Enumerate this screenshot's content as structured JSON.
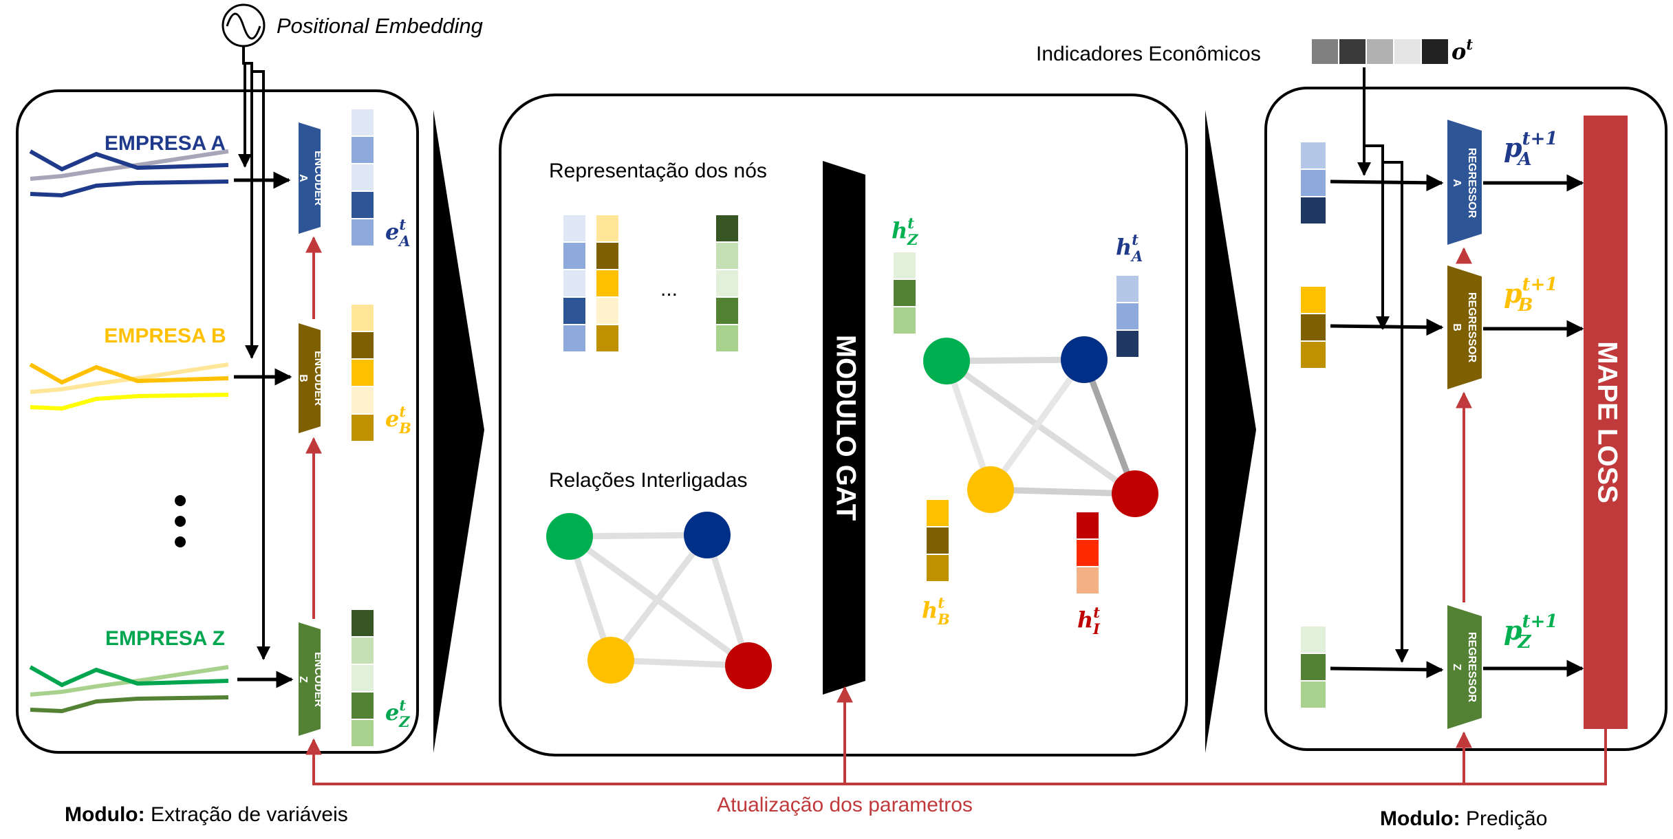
{
  "positional_embedding": "Positional Embedding",
  "economic_indicators": {
    "label": "Indicadores Econômicos",
    "symbol": "o",
    "superscript": "t",
    "cell_colors": [
      "#808080",
      "#3a3a3a",
      "#b0b0b0",
      "#e4e4e4",
      "#222222"
    ]
  },
  "feature_module": {
    "caption_bold": "Modulo:",
    "caption_text": "Extração de variáveis",
    "companies": [
      {
        "name": "EMPRESA A",
        "color": "#1f3a8a",
        "encoder_top": "ENCODER",
        "encoder_bottom": "A",
        "encoder_fill": "#2e5596",
        "emb_symbol": "e",
        "emb_sup": "t",
        "emb_sub": "A",
        "emb_cells": [
          "#dfe7f5",
          "#8eaadc",
          "#dfe7f5",
          "#2e5596",
          "#8eaadc"
        ],
        "series_colors": [
          "#a6a6b8",
          "#1f3a8a",
          "#1f3a8a"
        ]
      },
      {
        "name": "EMPRESA B",
        "color": "#ffc000",
        "encoder_top": "ENCODER",
        "encoder_bottom": "B",
        "encoder_fill": "#7f6000",
        "emb_symbol": "e",
        "emb_sup": "t",
        "emb_sub": "B",
        "emb_cells": [
          "#ffe699",
          "#7f6000",
          "#ffc000",
          "#fff2cc",
          "#bf9000"
        ],
        "series_colors": [
          "#ffe699",
          "#ffc000",
          "#ffff00"
        ]
      },
      {
        "name": "EMPRESA Z",
        "color": "#00a550",
        "encoder_top": "ENCODER",
        "encoder_bottom": "Z",
        "encoder_fill": "#548235",
        "emb_symbol": "e",
        "emb_sup": "t",
        "emb_sub": "Z",
        "emb_cells": [
          "#375623",
          "#c5e0b4",
          "#e2efda",
          "#548235",
          "#a9d18e"
        ],
        "series_colors": [
          "#a9d18e",
          "#00a550",
          "#548235"
        ]
      }
    ]
  },
  "gat_module": {
    "node_repr_label": "Representação dos nós",
    "relations_label": "Relações Interligadas",
    "ellipsis": "...",
    "gat_label": "MODULO GAT",
    "node_columns": [
      [
        "#dfe7f5",
        "#8eaadc",
        "#dfe7f5",
        "#2e5596",
        "#8eaadc"
      ],
      [
        "#ffe699",
        "#7f6000",
        "#ffc000",
        "#fff2cc",
        "#bf9000"
      ],
      [
        "#375623",
        "#c5e0b4",
        "#e2efda",
        "#548235",
        "#a9d18e"
      ]
    ],
    "node_colors": {
      "green": "#00b050",
      "blue": "#002f87",
      "yellow": "#ffc000",
      "red": "#c00000"
    },
    "hidden": [
      {
        "symbol": "h",
        "sup": "t",
        "sub": "Z",
        "color": "#00b050",
        "cells": [
          "#e2efda",
          "#548235",
          "#a9d18e"
        ]
      },
      {
        "symbol": "h",
        "sup": "t",
        "sub": "A",
        "color": "#1f3a8a",
        "cells": [
          "#b4c7e7",
          "#8eaadc",
          "#1f3864"
        ]
      },
      {
        "symbol": "h",
        "sup": "t",
        "sub": "B",
        "color": "#ffc000",
        "cells": [
          "#ffc000",
          "#7f6000",
          "#bf9000"
        ]
      },
      {
        "symbol": "h",
        "sup": "t",
        "sub": "I",
        "color": "#c00000",
        "cells": [
          "#c00000",
          "#ff2a00",
          "#f4b183"
        ]
      }
    ]
  },
  "prediction_module": {
    "caption_bold": "Modulo:",
    "caption_text": "Predição",
    "loss_label": "MAPE LOSS",
    "loss_color": "#c0393b",
    "regressors": [
      {
        "top": "REGRESSOR",
        "bottom": "A",
        "fill": "#2e5596",
        "out_symbol": "p",
        "out_sup": "t+1",
        "out_sub": "A",
        "out_color": "#1f3a8a",
        "cells": [
          "#b4c7e7",
          "#8eaadc",
          "#1f3864"
        ]
      },
      {
        "top": "REGRESSOR",
        "bottom": "B",
        "fill": "#7f6000",
        "out_symbol": "p",
        "out_sup": "t+1",
        "out_sub": "B",
        "out_color": "#ffc000",
        "cells": [
          "#ffc000",
          "#7f6000",
          "#bf9000"
        ]
      },
      {
        "top": "REGRESSOR",
        "bottom": "Z",
        "fill": "#548235",
        "out_symbol": "p",
        "out_sup": "t+1",
        "out_sub": "Z",
        "out_color": "#00b050",
        "cells": [
          "#e2efda",
          "#548235",
          "#a9d18e"
        ]
      }
    ]
  },
  "feedback_label": "Atualização dos parametros",
  "feedback_color": "#c0393b"
}
